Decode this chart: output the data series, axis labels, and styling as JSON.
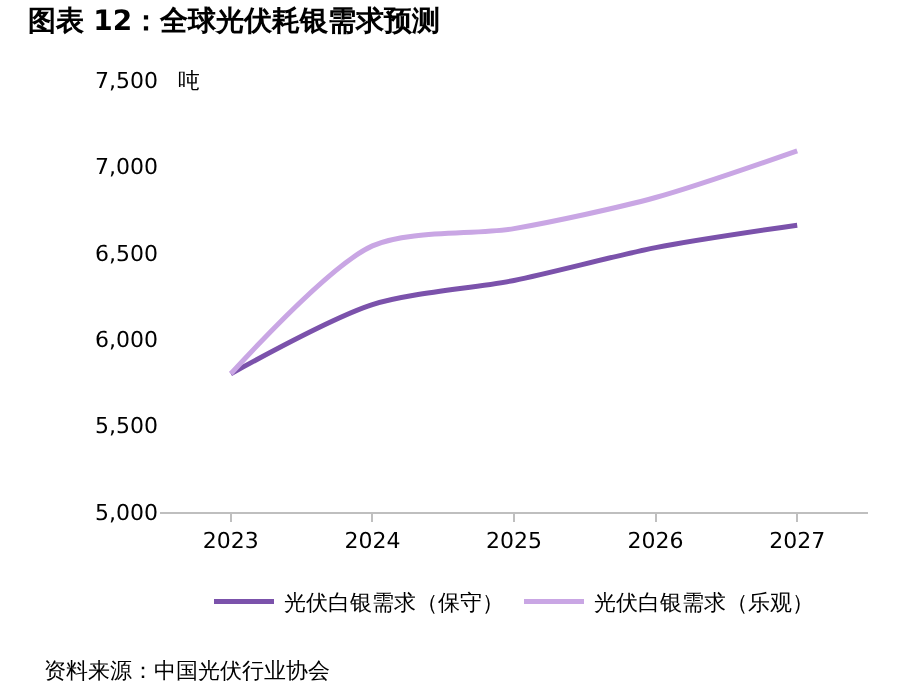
{
  "chart_data": {
    "type": "line",
    "title": "图表 12：全球光伏耗银需求预测",
    "ylabel": "吨",
    "categories": [
      "2023",
      "2024",
      "2025",
      "2026",
      "2027"
    ],
    "series": [
      {
        "name": "光伏白银需求（保守）",
        "color": "#7b52ab",
        "values": [
          5800,
          6200,
          6340,
          6530,
          6660
        ]
      },
      {
        "name": "光伏白银需求（乐观）",
        "color": "#c9a6e4",
        "values": [
          5800,
          6540,
          6640,
          6820,
          7090
        ]
      }
    ],
    "ylim": [
      5000,
      7500
    ],
    "yticks": [
      {
        "value": 5000,
        "label": "5,000"
      },
      {
        "value": 5500,
        "label": "5,500"
      },
      {
        "value": 6000,
        "label": "6,000"
      },
      {
        "value": 6500,
        "label": "6,500"
      },
      {
        "value": 7000,
        "label": "7,000"
      },
      {
        "value": 7500,
        "label": "7,500"
      }
    ],
    "grid": false,
    "legend": "bottom",
    "marker": "none",
    "line_style": "solid",
    "annotations": [
      "资料来源：中国光伏行业协会"
    ]
  }
}
